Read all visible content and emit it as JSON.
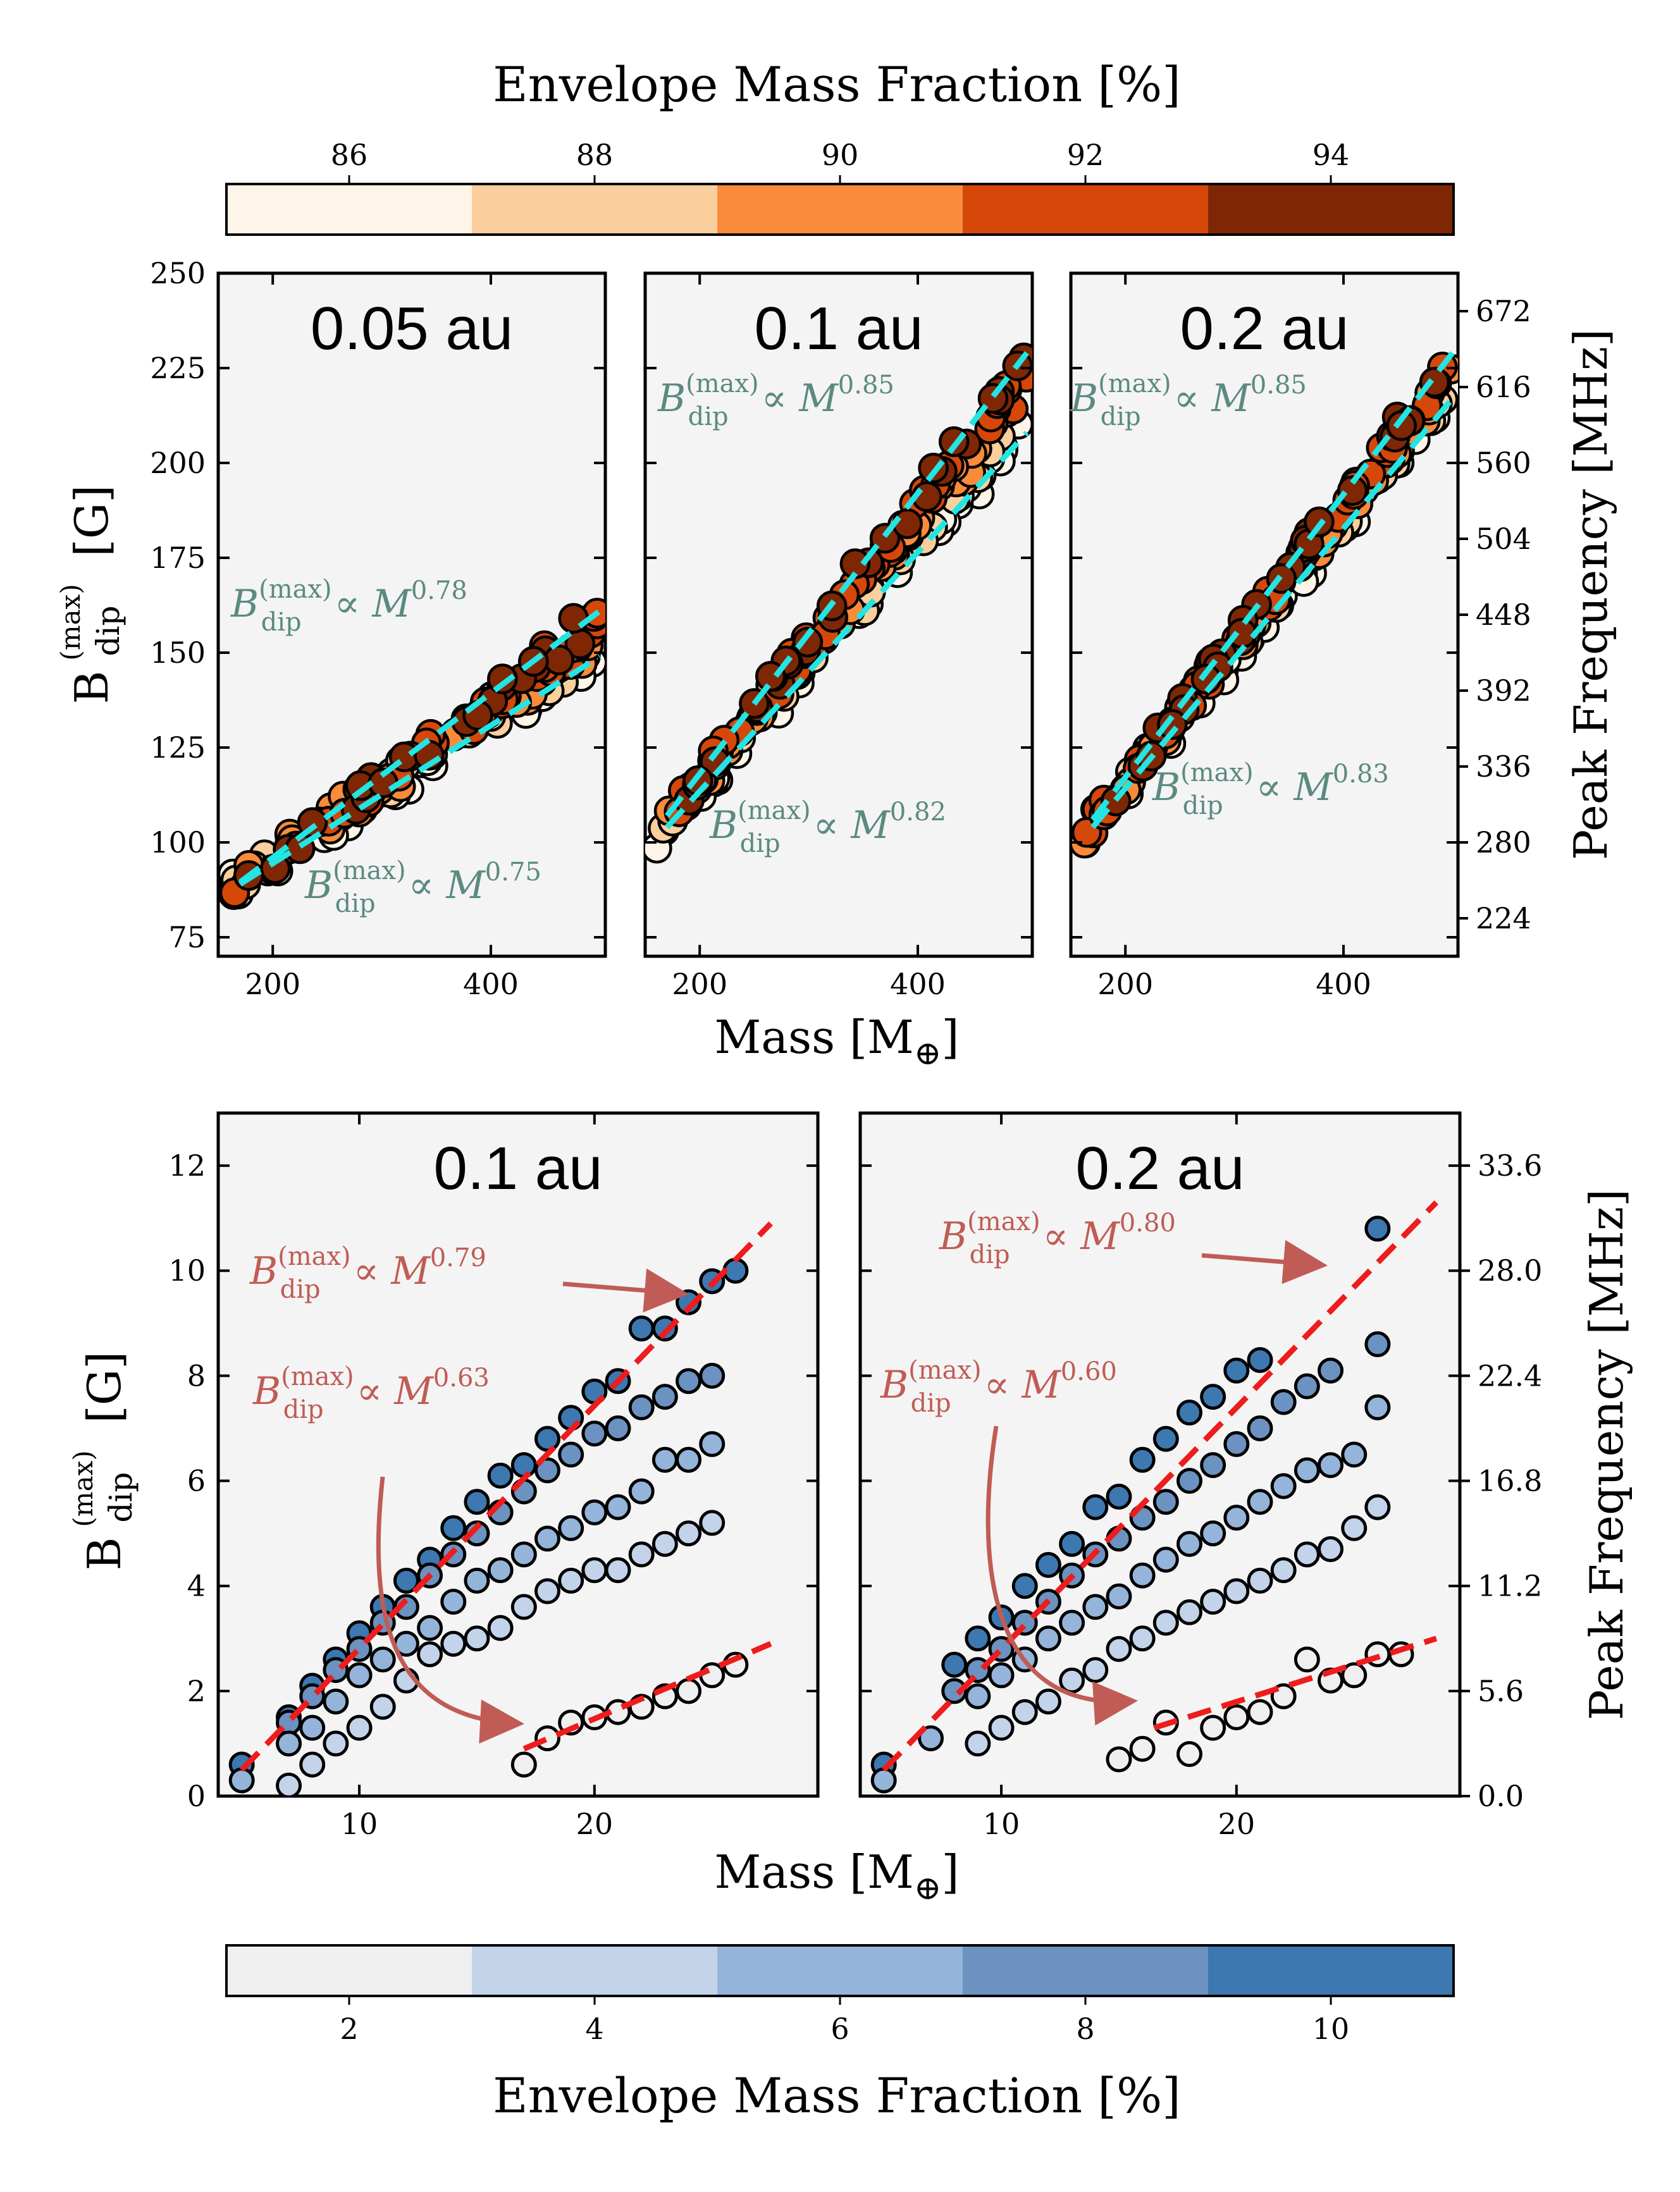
{
  "colors": {
    "cyan_fit": "#22e5e5",
    "red_fit": "#ee1c1c",
    "green_label": "#5b8a80",
    "red_label": "#c05c55",
    "orange_bins": [
      "#fff4e8",
      "#fbcf9d",
      "#f98b3a",
      "#d6470a",
      "#7f2704"
    ],
    "blue_bins": [
      "#efefef",
      "#c2d3ea",
      "#94b4da",
      "#6b92c0",
      "#3d78b0"
    ]
  },
  "top_colorbar": {
    "label": "Envelope Mass Fraction [%]",
    "ticks": [
      "86",
      "88",
      "90",
      "92",
      "94"
    ],
    "range": [
      85,
      95
    ]
  },
  "bottom_colorbar": {
    "label": "Envelope Mass Fraction [%]",
    "ticks": [
      "2",
      "4",
      "6",
      "8",
      "10"
    ],
    "range": [
      1,
      11
    ]
  },
  "shared": {
    "xlabel": "Mass [M",
    "xlabel_sub": "⊕",
    "xlabel_end": "]",
    "ylabel_main": "B",
    "ylabel_sup": "(max)",
    "ylabel_sub": "dip",
    "ylabel_unit": "[G]",
    "right_ylabel": "Peak Frequency [MHz]",
    "fit_B": "B",
    "fit_sup": "(max)",
    "fit_sub": "dip",
    "fit_prop": "∝ M"
  },
  "chart_data": [
    {
      "type": "scatter",
      "title": "0.05 au",
      "xlim": [
        150,
        505
      ],
      "ylim": [
        70,
        250
      ],
      "xticks": [
        200,
        400
      ],
      "yticks": [
        75,
        100,
        125,
        150,
        175,
        200,
        225,
        250
      ],
      "xlabel": "Mass [M⊕]",
      "ylabel": "B_dip^(max) [G]",
      "fits": [
        {
          "label": "B_dip^(max) ∝ M^0.78",
          "exponent": "0.78",
          "x": [
            170,
            500
          ],
          "y": [
            89.5,
            161
          ]
        },
        {
          "label": "B_dip^(max) ∝ M^0.75",
          "exponent": "0.75",
          "x": [
            170,
            500
          ],
          "y": [
            89,
            149
          ]
        }
      ],
      "points_summary": "~170 points, mass 160–500, colored by envelope mass fraction 85–95%"
    },
    {
      "type": "scatter",
      "title": "0.1 au",
      "xlim": [
        150,
        505
      ],
      "ylim": [
        70,
        250
      ],
      "xticks": [
        200,
        400
      ],
      "fits": [
        {
          "label": "B_dip^(max) ∝ M^0.85",
          "exponent": "0.85",
          "x": [
            170,
            500
          ],
          "y": [
            107,
            229
          ]
        },
        {
          "label": "B_dip^(max) ∝ M^0.82",
          "exponent": "0.82",
          "x": [
            170,
            500
          ],
          "y": [
            104,
            208
          ]
        }
      ]
    },
    {
      "type": "scatter",
      "title": "0.2 au",
      "xlim": [
        150,
        505
      ],
      "ylim": [
        70,
        250
      ],
      "xticks": [
        200,
        400
      ],
      "right_axis": {
        "label": "Peak Frequency [MHz]",
        "ticks": [
          "224",
          "280",
          "336",
          "392",
          "448",
          "504",
          "560",
          "616",
          "672"
        ],
        "tick_values_G": [
          80,
          100,
          120,
          140,
          160,
          180,
          200,
          220,
          240
        ]
      },
      "fits": [
        {
          "label": "B_dip^(max) ∝ M^0.85",
          "exponent": "0.85",
          "x": [
            170,
            500
          ],
          "y": [
            106,
            229
          ]
        },
        {
          "label": "B_dip^(max) ∝ M^0.83",
          "exponent": "0.83",
          "x": [
            170,
            500
          ],
          "y": [
            104,
            217
          ]
        }
      ]
    },
    {
      "type": "scatter",
      "title": "0.1 au",
      "xlim": [
        4,
        29.5
      ],
      "ylim": [
        0,
        13
      ],
      "xticks": [
        10,
        20
      ],
      "yticks": [
        0,
        2,
        4,
        6,
        8,
        10,
        12
      ],
      "xlabel": "Mass [M⊕]",
      "ylabel": "B_dip^(max) [G]",
      "fits": [
        {
          "label": "B_dip^(max) ∝ M^0.79",
          "exponent": "0.79",
          "x": [
            5,
            27.5
          ],
          "y": [
            0.5,
            10.9
          ]
        },
        {
          "label": "B_dip^(max) ∝ M^0.63",
          "exponent": "0.63",
          "x": [
            17,
            27.5
          ],
          "y": [
            0.9,
            2.9
          ]
        }
      ],
      "series": [
        {
          "name": "10%",
          "x": [
            5,
            7,
            8,
            9,
            10,
            11,
            12,
            13,
            14,
            15,
            16,
            17,
            18,
            19,
            20,
            21,
            22,
            23,
            24,
            25,
            26
          ],
          "y": [
            0.6,
            1.5,
            2.1,
            2.6,
            3.1,
            3.6,
            4.1,
            4.5,
            5.1,
            5.6,
            6.1,
            6.3,
            6.8,
            7.2,
            7.7,
            7.9,
            8.9,
            8.9,
            9.4,
            9.8,
            10.0
          ]
        },
        {
          "name": "8%",
          "x": [
            7,
            8,
            9,
            10,
            11,
            12,
            13,
            14,
            15,
            16,
            17,
            18,
            19,
            20,
            21,
            22,
            23,
            24,
            25
          ],
          "y": [
            1.4,
            1.9,
            2.4,
            2.8,
            3.3,
            3.6,
            4.2,
            4.6,
            5.0,
            5.4,
            5.8,
            6.2,
            6.5,
            6.9,
            7.0,
            7.4,
            7.6,
            7.9,
            8.0
          ]
        },
        {
          "name": "6%",
          "x": [
            5,
            7,
            8,
            9,
            10,
            11,
            12,
            13,
            14,
            15,
            16,
            17,
            18,
            19,
            20,
            21,
            22,
            23,
            24,
            25
          ],
          "y": [
            0.3,
            1.0,
            1.3,
            1.8,
            2.3,
            2.6,
            2.9,
            3.2,
            3.7,
            4.1,
            4.3,
            4.6,
            4.9,
            5.1,
            5.4,
            5.5,
            5.8,
            6.4,
            6.4,
            6.7
          ]
        },
        {
          "name": "4%",
          "x": [
            7,
            8,
            9,
            10,
            11,
            12,
            13,
            14,
            15,
            16,
            17,
            18,
            19,
            20,
            21,
            22,
            23,
            24,
            25
          ],
          "y": [
            0.2,
            0.6,
            1.0,
            1.3,
            1.7,
            2.2,
            2.7,
            2.9,
            3.0,
            3.2,
            3.6,
            3.9,
            4.1,
            4.3,
            4.3,
            4.6,
            4.8,
            5.0,
            5.2
          ]
        },
        {
          "name": "2%",
          "x": [
            17,
            18,
            19,
            20,
            21,
            22,
            23,
            24,
            25,
            26
          ],
          "y": [
            0.6,
            1.1,
            1.4,
            1.5,
            1.6,
            1.7,
            1.9,
            2.0,
            2.3,
            2.5
          ]
        }
      ]
    },
    {
      "type": "scatter",
      "title": "0.2 au",
      "xlim": [
        4,
        29.5
      ],
      "ylim": [
        0,
        13
      ],
      "xticks": [
        10,
        20
      ],
      "right_axis": {
        "label": "Peak Frequency [MHz]",
        "ticks": [
          "0.0",
          "5.6",
          "11.2",
          "16.8",
          "22.4",
          "28.0",
          "33.6"
        ],
        "tick_values_G": [
          0,
          2,
          4,
          6,
          8,
          10,
          12
        ]
      },
      "fits": [
        {
          "label": "B_dip^(max) ∝ M^0.80",
          "exponent": "0.80",
          "x": [
            5,
            28.5
          ],
          "y": [
            0.5,
            11.3
          ]
        },
        {
          "label": "B_dip^(max) ∝ M^0.60",
          "exponent": "0.60",
          "x": [
            16.5,
            28.5
          ],
          "y": [
            1.3,
            3.0
          ]
        }
      ],
      "series": [
        {
          "name": "10%",
          "x": [
            5,
            8,
            9,
            10,
            11,
            12,
            13,
            14,
            15,
            16,
            17,
            18,
            19,
            20,
            21,
            26
          ],
          "y": [
            0.6,
            2.5,
            3.0,
            3.4,
            4.0,
            4.4,
            4.8,
            5.5,
            5.7,
            6.4,
            6.8,
            7.3,
            7.6,
            8.1,
            8.3,
            10.8
          ]
        },
        {
          "name": "8%",
          "x": [
            8,
            9,
            10,
            11,
            12,
            13,
            14,
            15,
            16,
            17,
            18,
            19,
            20,
            21,
            22,
            23,
            24,
            26
          ],
          "y": [
            2.0,
            2.4,
            2.8,
            3.3,
            3.7,
            4.2,
            4.6,
            4.9,
            5.3,
            5.6,
            6.0,
            6.3,
            6.7,
            7.0,
            7.5,
            7.8,
            8.1,
            8.6
          ]
        },
        {
          "name": "6%",
          "x": [
            5,
            7,
            9,
            10,
            11,
            12,
            13,
            14,
            15,
            16,
            17,
            18,
            19,
            20,
            21,
            22,
            23,
            24,
            25,
            26
          ],
          "y": [
            0.3,
            1.1,
            1.9,
            2.3,
            2.6,
            3.0,
            3.3,
            3.6,
            3.8,
            4.2,
            4.5,
            4.8,
            5.0,
            5.3,
            5.6,
            5.9,
            6.2,
            6.3,
            6.5,
            7.4
          ]
        },
        {
          "name": "4%",
          "x": [
            9,
            10,
            11,
            12,
            13,
            14,
            15,
            16,
            17,
            18,
            19,
            20,
            21,
            22,
            23,
            24,
            25,
            26
          ],
          "y": [
            1.0,
            1.3,
            1.6,
            1.8,
            2.2,
            2.4,
            2.8,
            3.0,
            3.3,
            3.5,
            3.7,
            3.9,
            4.1,
            4.3,
            4.6,
            4.7,
            5.1,
            5.5
          ]
        },
        {
          "name": "2%",
          "x": [
            15,
            16,
            17,
            18,
            19,
            20,
            21,
            22,
            23,
            24,
            25,
            26,
            27
          ],
          "y": [
            0.7,
            0.9,
            1.4,
            0.8,
            1.3,
            1.5,
            1.6,
            1.9,
            2.6,
            2.2,
            2.3,
            2.7,
            2.7
          ]
        }
      ]
    }
  ]
}
